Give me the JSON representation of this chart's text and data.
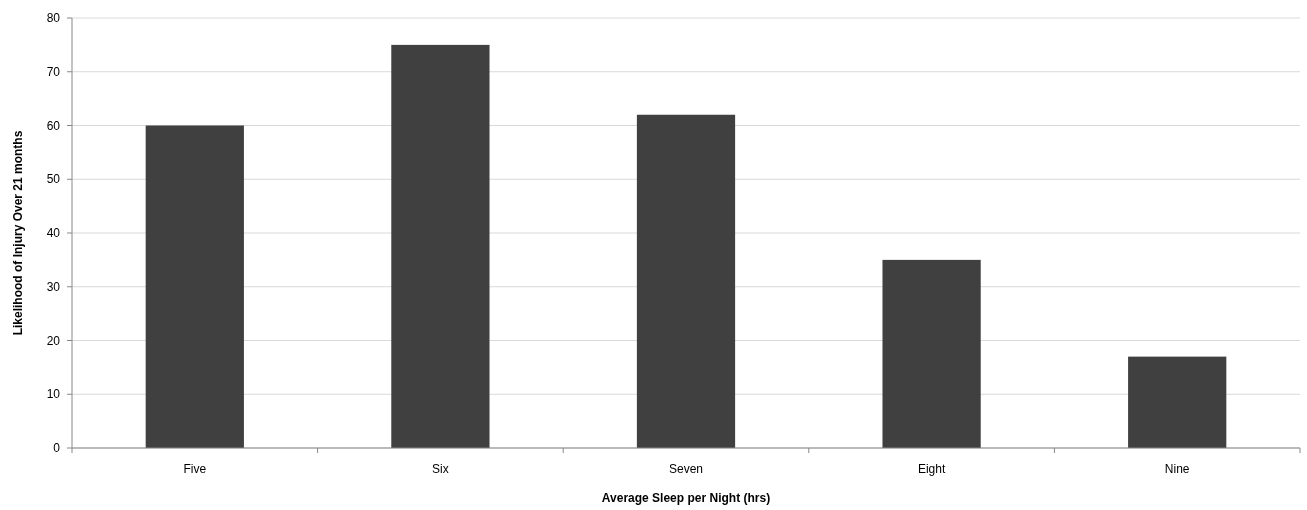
{
  "chart_data": {
    "type": "bar",
    "xlabel": "Average Sleep per Night (hrs)",
    "ylabel": "Likelihood of Injury Over 21 months",
    "categories": [
      "Five",
      "Six",
      "Seven",
      "Eight",
      "Nine"
    ],
    "values": [
      60,
      75,
      62,
      35,
      17
    ],
    "color": "#404040",
    "ylim": [
      0,
      80
    ],
    "yticks": [
      0,
      10,
      20,
      30,
      40,
      50,
      60,
      70,
      80
    ],
    "grid": "y"
  }
}
